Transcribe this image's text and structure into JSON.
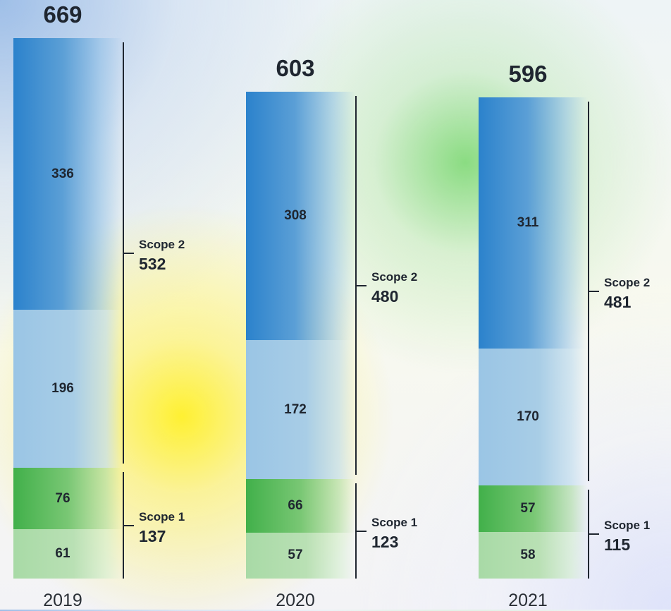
{
  "chart_data": {
    "type": "bar",
    "stacked": true,
    "categories": [
      "2019",
      "2020",
      "2021"
    ],
    "totals": [
      669,
      603,
      596
    ],
    "segments": [
      {
        "group": "Scope 2",
        "values": [
          336,
          308,
          311
        ],
        "color": "#2b82cc"
      },
      {
        "group": "Scope 2",
        "values": [
          196,
          172,
          170
        ],
        "color": "#9ac5e5"
      },
      {
        "group": "Scope 1",
        "values": [
          76,
          66,
          57
        ],
        "color": "#41b04a"
      },
      {
        "group": "Scope 1",
        "values": [
          61,
          57,
          58
        ],
        "color": "#a8daa6"
      }
    ],
    "groups": [
      {
        "name": "Scope 2",
        "totals": [
          532,
          480,
          481
        ]
      },
      {
        "name": "Scope 1",
        "totals": [
          137,
          123,
          115
        ]
      }
    ]
  }
}
